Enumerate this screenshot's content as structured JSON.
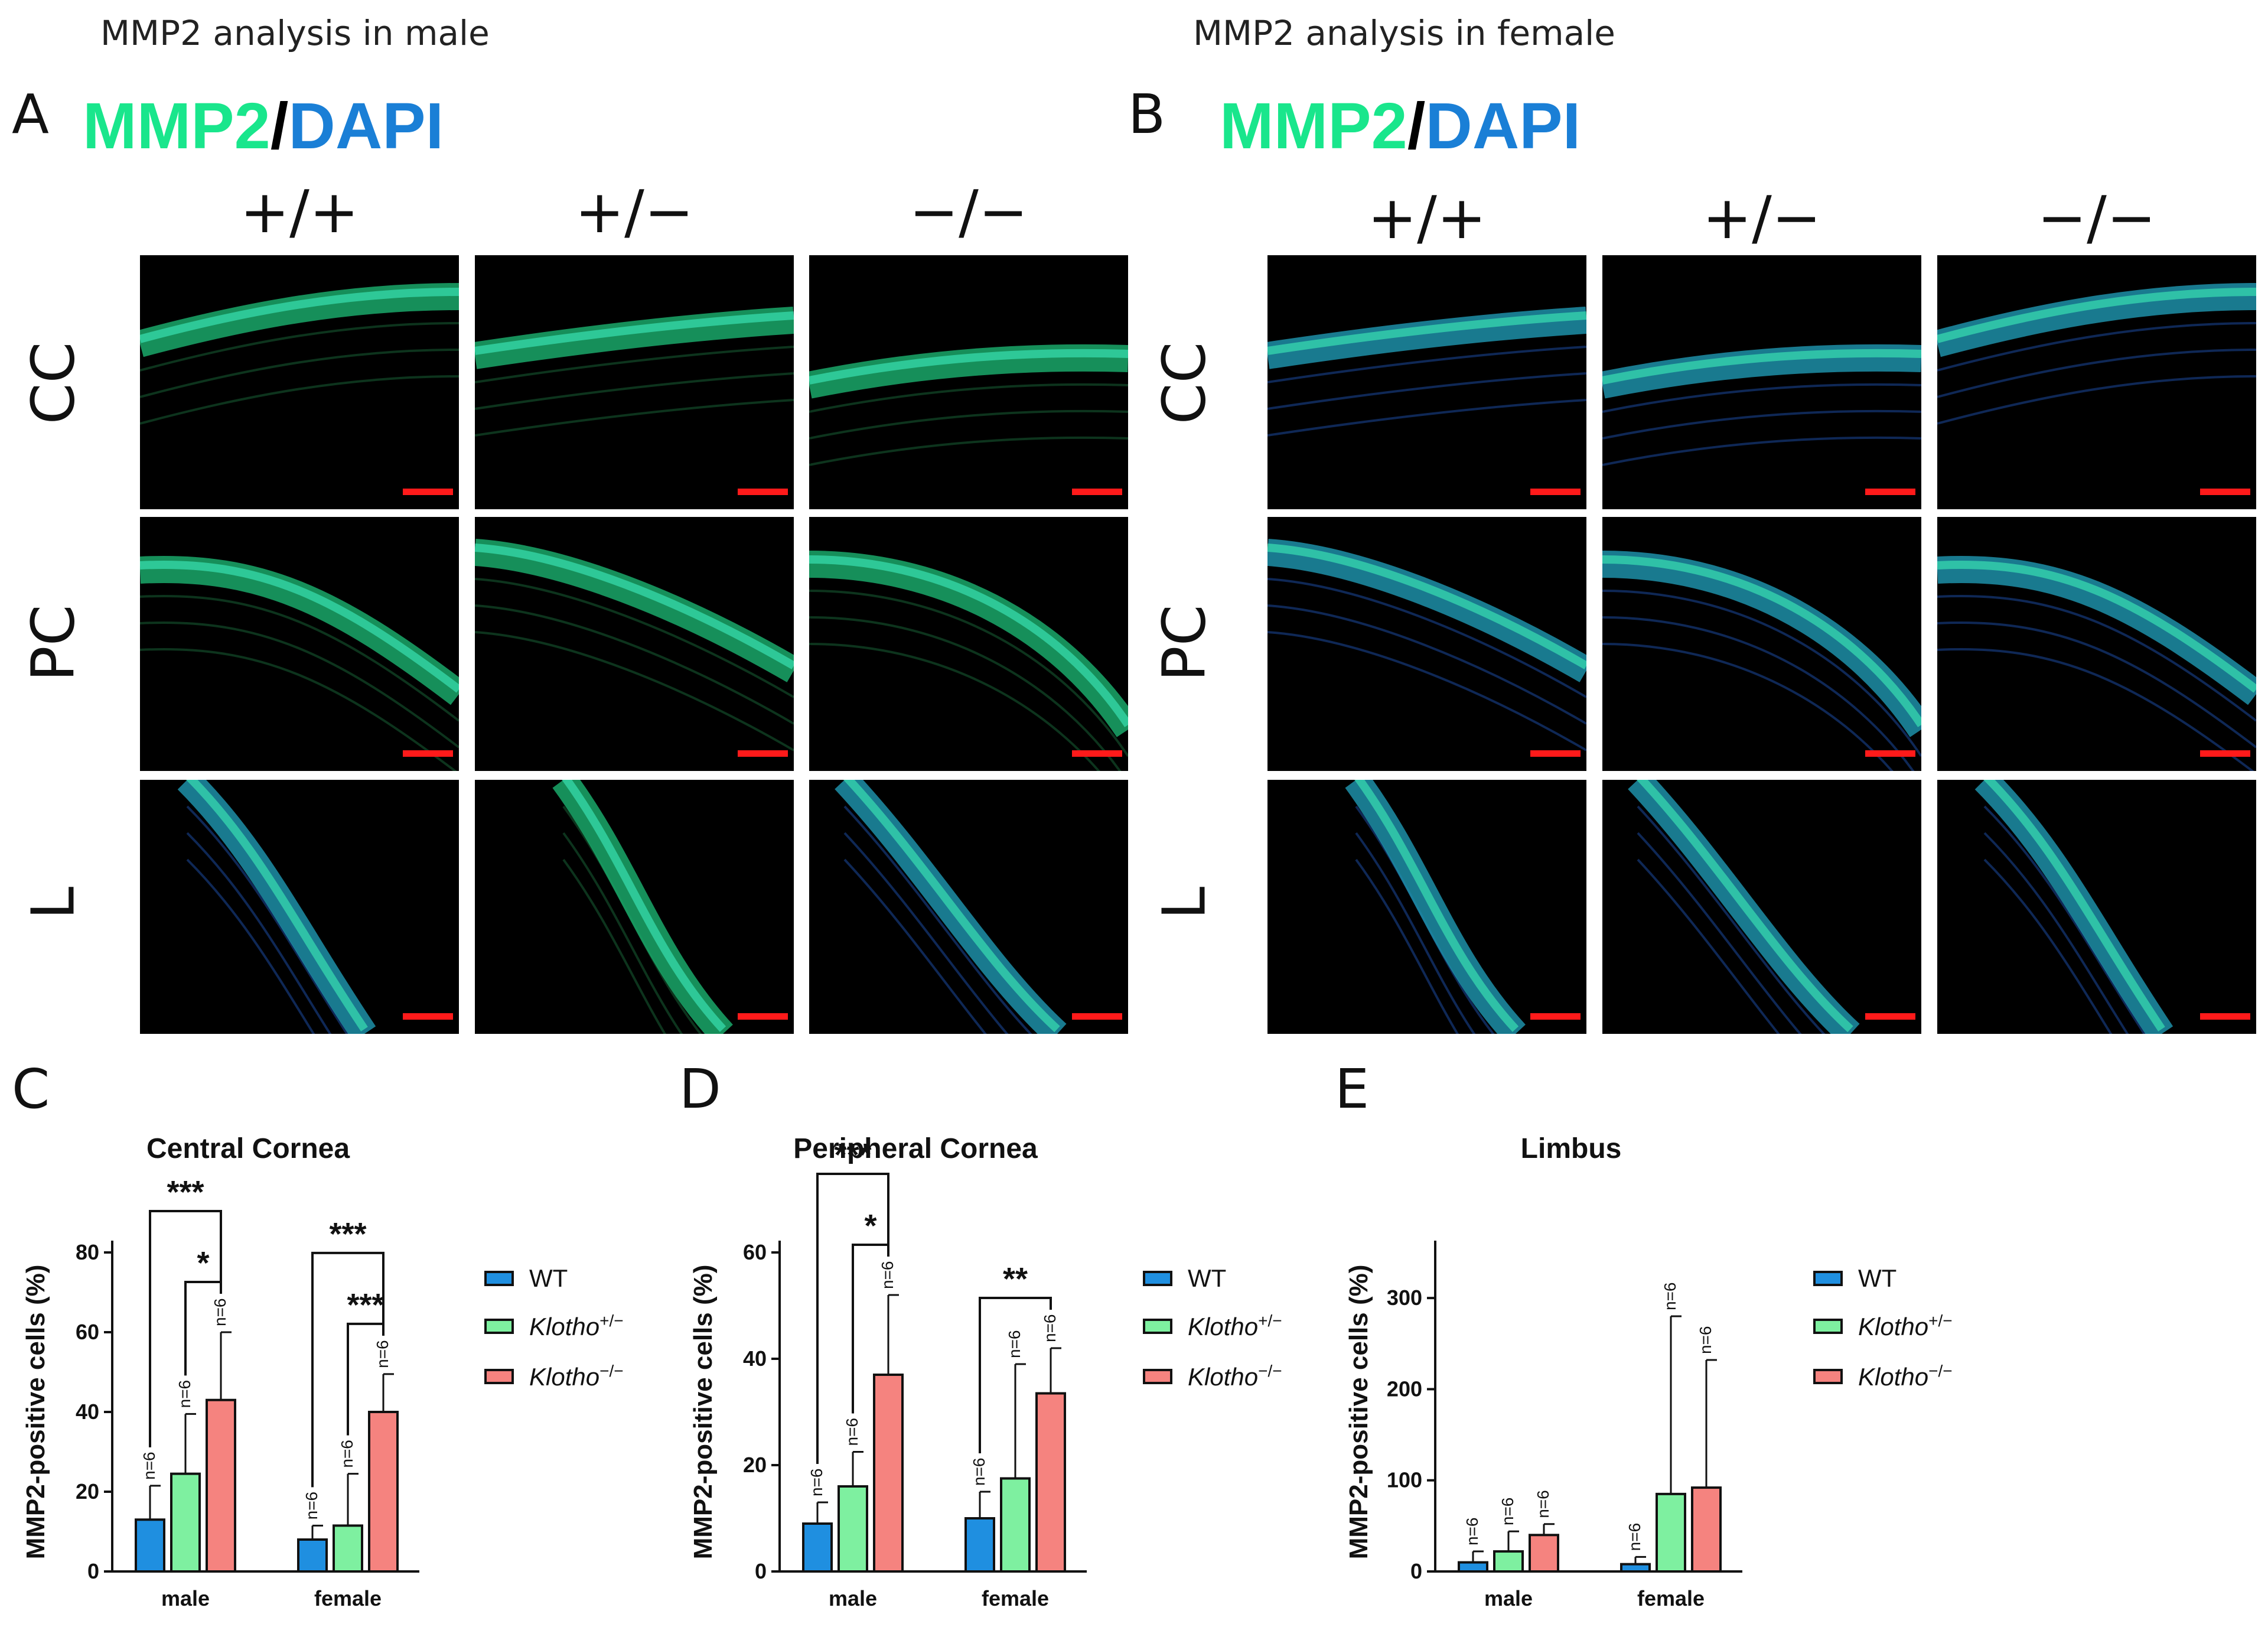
{
  "headings": {
    "male": "MMP2 analysis in male",
    "female": "MMP2 analysis in female"
  },
  "panels": {
    "A": "A",
    "B": "B",
    "C": "C",
    "D": "D",
    "E": "E"
  },
  "stain": {
    "mmp2": "MMP2",
    "slash": "/",
    "dapi": "DAPI"
  },
  "genotypes": [
    "+/+",
    "+/−",
    "−/−"
  ],
  "rows": [
    "CC",
    "PC",
    "L"
  ],
  "colors": {
    "wt": "#1f8fe0",
    "het": "#7ef0a0",
    "ko": "#f5837f",
    "scalebar": "#ff1a1a",
    "mmp2": "#19e68c",
    "dapi": "#1a7fd6"
  },
  "legend": {
    "wt": "WT",
    "het_base": "Klotho",
    "het_sup": "+/−",
    "ko_base": "Klotho",
    "ko_sup": "−/−"
  },
  "chart_data": [
    {
      "type": "bar",
      "title": "Central Cornea",
      "ylabel": "MMP2-positive cells (%)",
      "categories": [
        "male",
        "female"
      ],
      "ylim": [
        0,
        80
      ],
      "yticks": [
        0,
        20,
        40,
        60,
        80
      ],
      "series": [
        {
          "name": "WT",
          "values": [
            13,
            8
          ],
          "err": [
            8.5,
            3.5
          ]
        },
        {
          "name": "Klotho+/−",
          "values": [
            24.5,
            11.5
          ],
          "err": [
            15,
            13
          ]
        },
        {
          "name": "Klotho−/−",
          "values": [
            43,
            40
          ],
          "err": [
            17,
            9.5
          ]
        }
      ],
      "n_labels": [
        "n=6",
        "n=6",
        "n=6",
        "n=6",
        "n=6",
        "n=6"
      ],
      "significance": [
        {
          "group": 0,
          "from": 0,
          "to": 2,
          "label": "***"
        },
        {
          "group": 0,
          "from": 1,
          "to": 2,
          "label": "*"
        },
        {
          "group": 1,
          "from": 0,
          "to": 2,
          "label": "***"
        },
        {
          "group": 1,
          "from": 1,
          "to": 2,
          "label": "***"
        }
      ]
    },
    {
      "type": "bar",
      "title": "Peripheral Cornea",
      "ylabel": "MMP2-positive cells (%)",
      "categories": [
        "male",
        "female"
      ],
      "ylim": [
        0,
        60
      ],
      "yticks": [
        0,
        20,
        40,
        60
      ],
      "series": [
        {
          "name": "WT",
          "values": [
            9,
            10
          ],
          "err": [
            4,
            5
          ]
        },
        {
          "name": "Klotho+/−",
          "values": [
            16,
            17.5
          ],
          "err": [
            6.5,
            21.5
          ]
        },
        {
          "name": "Klotho−/−",
          "values": [
            37,
            33.5
          ],
          "err": [
            15,
            8.5
          ]
        }
      ],
      "n_labels": [
        "n=6",
        "n=6",
        "n=6",
        "n=6",
        "n=6",
        "n=6"
      ],
      "significance": [
        {
          "group": 0,
          "from": 0,
          "to": 2,
          "label": "***"
        },
        {
          "group": 0,
          "from": 1,
          "to": 2,
          "label": "*"
        },
        {
          "group": 1,
          "from": 0,
          "to": 2,
          "label": "**"
        }
      ]
    },
    {
      "type": "bar",
      "title": "Limbus",
      "ylabel": "MMP2-positive cells (%)",
      "categories": [
        "male",
        "female"
      ],
      "ylim": [
        0,
        350
      ],
      "yticks": [
        0,
        100,
        200,
        300
      ],
      "series": [
        {
          "name": "WT",
          "values": [
            10,
            8
          ],
          "err": [
            12,
            8
          ]
        },
        {
          "name": "Klotho+/−",
          "values": [
            22,
            85
          ],
          "err": [
            22,
            195
          ]
        },
        {
          "name": "Klotho−/−",
          "values": [
            40,
            92
          ],
          "err": [
            12,
            140
          ]
        }
      ],
      "n_labels": [
        "n=6",
        "n=6",
        "n=6",
        "n=6",
        "n=6",
        "n=6"
      ],
      "significance": []
    }
  ]
}
